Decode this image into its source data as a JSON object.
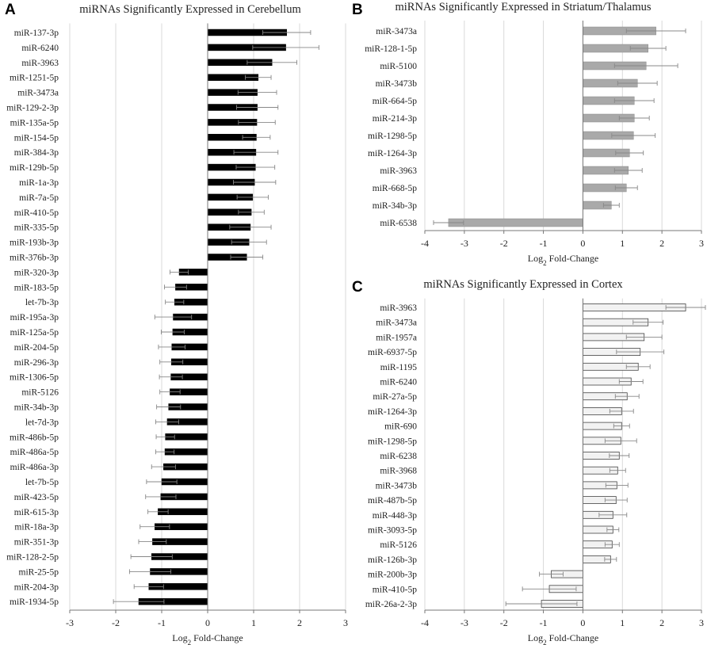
{
  "chart_data": [
    {
      "panel": "A",
      "type": "bar",
      "orientation": "horizontal",
      "title": "miRNAs Significantly Expressed in Cerebellum",
      "xlabel": "Log2 Fold-Change",
      "xlim": [
        -3,
        3
      ],
      "xticks": [
        "-3",
        "-2",
        "-1",
        "0",
        "1",
        "2",
        "3"
      ],
      "bar_color": "#000000",
      "categories": [
        "miR-137-3p",
        "miR-6240",
        "miR-3963",
        "miR-1251-5p",
        "miR-3473a",
        "miR-129-2-3p",
        "miR-135a-5p",
        "miR-154-5p",
        "miR-384-3p",
        "miR-129b-5p",
        "miR-1a-3p",
        "miR-7a-5p",
        "miR-410-5p",
        "miR-335-5p",
        "miR-193b-3p",
        "miR-376b-3p",
        "miR-320-3p",
        "miR-183-5p",
        "let-7b-3p",
        "miR-195a-3p",
        "miR-125a-5p",
        "miR-204-5p",
        "miR-296-3p",
        "miR-1306-5p",
        "miR-5126",
        "miR-34b-3p",
        "let-7d-3p",
        "miR-486b-5p",
        "miR-486a-5p",
        "miR-486a-3p",
        "let-7b-5p",
        "miR-423-5p",
        "miR-615-3p",
        "miR-18a-3p",
        "miR-351-3p",
        "miR-128-2-5p",
        "miR-25-5p",
        "miR-204-3p",
        "miR-1934-5p"
      ],
      "values": [
        1.72,
        1.7,
        1.4,
        1.1,
        1.08,
        1.08,
        1.07,
        1.06,
        1.05,
        1.04,
        1.02,
        0.98,
        0.95,
        0.93,
        0.9,
        0.85,
        -0.62,
        -0.7,
        -0.72,
        -0.75,
        -0.76,
        -0.78,
        -0.79,
        -0.8,
        -0.82,
        -0.85,
        -0.88,
        -0.92,
        -0.93,
        -0.96,
        -1.0,
        -1.02,
        -1.08,
        -1.15,
        -1.2,
        -1.22,
        -1.25,
        -1.28,
        -1.5
      ],
      "errors": [
        0.52,
        0.72,
        0.54,
        0.28,
        0.42,
        0.45,
        0.4,
        0.3,
        0.48,
        0.42,
        0.46,
        0.34,
        0.28,
        0.45,
        0.38,
        0.35,
        0.2,
        0.24,
        0.2,
        0.4,
        0.25,
        0.29,
        0.25,
        0.25,
        0.22,
        0.26,
        0.25,
        0.2,
        0.2,
        0.26,
        0.33,
        0.33,
        0.22,
        0.32,
        0.3,
        0.45,
        0.45,
        0.32,
        0.55
      ]
    },
    {
      "panel": "B",
      "type": "bar",
      "orientation": "horizontal",
      "title": "miRNAs Significantly Expressed in Striatum/Thalamus",
      "xlabel": "Log2 Fold-Change",
      "xlim": [
        -4,
        3
      ],
      "xticks": [
        "-4",
        "-3",
        "-2",
        "-1",
        "0",
        "1",
        "2",
        "3"
      ],
      "bar_color": "#a9a9a9",
      "categories": [
        "miR-3473a",
        "miR-128-1-5p",
        "miR-5100",
        "miR-3473b",
        "miR-664-5p",
        "miR-214-3p",
        "miR-1298-5p",
        "miR-1264-3p",
        "miR-3963",
        "miR-668-5p",
        "miR-34b-3p",
        "miR-6538"
      ],
      "values": [
        1.85,
        1.65,
        1.6,
        1.38,
        1.3,
        1.3,
        1.28,
        1.18,
        1.15,
        1.1,
        0.72,
        -3.4
      ],
      "errors": [
        0.75,
        0.45,
        0.8,
        0.5,
        0.5,
        0.38,
        0.55,
        0.35,
        0.35,
        0.28,
        0.2,
        0.38
      ]
    },
    {
      "panel": "C",
      "type": "bar",
      "orientation": "horizontal",
      "title": "miRNAs Significantly Expressed in Cortex",
      "xlabel": "Log2 Fold-Change",
      "xlim": [
        -4,
        3
      ],
      "xticks": [
        "-4",
        "-3",
        "-2",
        "-1",
        "0",
        "1",
        "2",
        "3"
      ],
      "bar_color": "#f2f2f2",
      "categories": [
        "miR-3963",
        "miR-3473a",
        "miR-1957a",
        "miR-6937-5p",
        "miR-1195",
        "miR-6240",
        "miR-27a-5p",
        "miR-1264-3p",
        "miR-690",
        "miR-1298-5p",
        "miR-6238",
        "miR-3968",
        "miR-3473b",
        "miR-487b-5p",
        "miR-448-3p",
        "miR-3093-5p",
        "miR-5126",
        "miR-126b-3p",
        "miR-200b-3p",
        "miR-410-5p",
        "miR-26a-2-3p"
      ],
      "values": [
        2.6,
        1.65,
        1.55,
        1.45,
        1.4,
        1.22,
        1.12,
        0.98,
        0.98,
        0.96,
        0.92,
        0.88,
        0.86,
        0.84,
        0.76,
        0.76,
        0.74,
        0.7,
        -0.8,
        -0.85,
        -1.05
      ],
      "errors": [
        0.5,
        0.38,
        0.45,
        0.6,
        0.3,
        0.3,
        0.3,
        0.3,
        0.2,
        0.4,
        0.25,
        0.2,
        0.28,
        0.28,
        0.35,
        0.15,
        0.18,
        0.15,
        0.3,
        0.68,
        0.9
      ]
    }
  ]
}
